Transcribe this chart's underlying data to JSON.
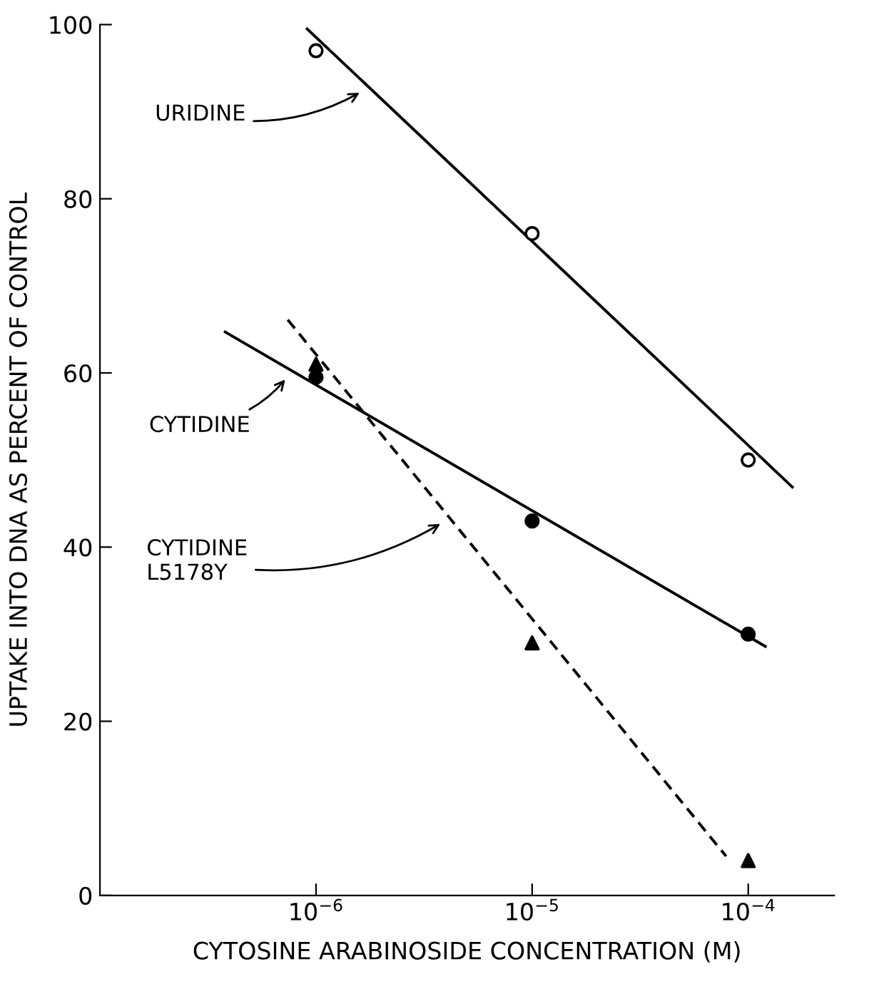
{
  "chart_data": {
    "type": "scatter",
    "xlabel": "CYTOSINE ARABINOSIDE CONCENTRATION (M)",
    "ylabel": "UPTAKE INTO DNA AS PERCENT OF CONTROL",
    "log": "x",
    "xlim": [
      1e-07,
      0.00025
    ],
    "ylim": [
      0,
      100
    ],
    "xticks": [
      {
        "value": 1e-06,
        "label": "10$^{−6}$"
      },
      {
        "value": 1e-05,
        "label": "10$^{−5}$"
      },
      {
        "value": 0.0001,
        "label": "10$^{−4}$"
      }
    ],
    "yticks": [
      0,
      20,
      40,
      60,
      80,
      100
    ],
    "grid": false,
    "legend": false,
    "series": [
      {
        "color": "#ffffff",
        "marker": "circle",
        "x": [
          1e-06,
          1e-05,
          0.0001
        ],
        "values": [
          97,
          76,
          50
        ]
      },
      {
        "color": "#000000",
        "marker": "circle",
        "x": [
          1e-06,
          1e-05,
          0.0001
        ],
        "values": [
          59.5,
          43,
          30
        ]
      },
      {
        "color": "#000000",
        "marker": "triangle",
        "x": [
          1e-06,
          1e-05,
          0.0001
        ],
        "values": [
          61,
          29,
          4
        ]
      },
      {
        "type": "line",
        "color": "#000000",
        "line_style": "solid",
        "marker": "none",
        "x": [
          9.1e-07,
          0.00016
        ],
        "values": [
          99.5,
          46.9
        ]
      },
      {
        "type": "line",
        "color": "#000000",
        "line_style": "solid",
        "marker": "none",
        "x": [
          3.8e-07,
          0.00012
        ],
        "values": [
          64.7,
          28.6
        ]
      },
      {
        "type": "line",
        "color": "#000000",
        "line_style": "dashed",
        "marker": "none",
        "x": [
          7.4e-07,
          7.9e-05
        ],
        "values": [
          66.1,
          4.5
        ]
      }
    ],
    "annotations": [
      {
        "text": "URIDINE",
        "x": 1.65e-06,
        "y": 92.4
      },
      {
        "text": "CYTIDINE",
        "x": 7.4e-07,
        "y": 59.6
      },
      {
        "text": "CYTIDINE\nL5178Y",
        "x": 3.9e-06,
        "y": 42.9
      }
    ]
  }
}
